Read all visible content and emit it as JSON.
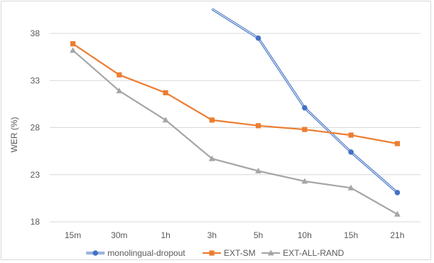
{
  "chart_data": {
    "type": "line",
    "title": "",
    "xlabel": "",
    "ylabel": "WER (%)",
    "categories": [
      "15m",
      "30m",
      "1h",
      "3h",
      "5h",
      "10h",
      "15h",
      "21h"
    ],
    "ylim": [
      18,
      41
    ],
    "yticks": [
      18,
      23,
      28,
      33,
      38
    ],
    "grid": true,
    "legend_position": "bottom",
    "series": [
      {
        "name": "monolingual-dropout",
        "color": "#4472c4",
        "marker": "circle",
        "values": [
          null,
          null,
          null,
          null,
          37.5,
          30.1,
          25.4,
          21.1
        ],
        "clipped_leading_value": 40.6
      },
      {
        "name": "EXT-SM",
        "color": "#ed7d31",
        "marker": "square",
        "values": [
          36.9,
          33.6,
          31.7,
          28.8,
          28.2,
          27.8,
          27.2,
          26.3
        ]
      },
      {
        "name": "EXT-ALL-RAND",
        "color": "#a5a5a5",
        "marker": "triangle",
        "values": [
          36.2,
          31.9,
          28.8,
          24.7,
          23.4,
          22.3,
          21.6,
          18.8
        ]
      }
    ]
  }
}
